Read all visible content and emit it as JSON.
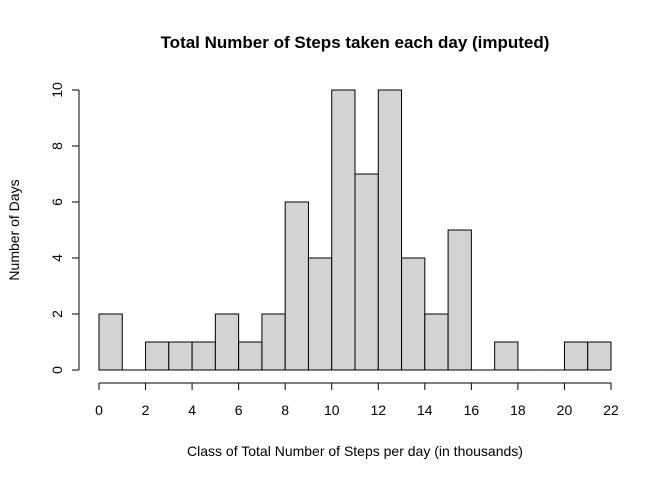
{
  "chart_data": {
    "type": "bar",
    "subtype": "histogram",
    "title": "Total Number of Steps taken each day (imputed)",
    "xlabel": "Class of Total Number of Steps per day (in thousands)",
    "ylabel": "Number of Days",
    "bin_edges": [
      0,
      1,
      2,
      3,
      4,
      5,
      6,
      7,
      8,
      9,
      10,
      11,
      12,
      13,
      14,
      15,
      16,
      17,
      18,
      19,
      20,
      21,
      22
    ],
    "values": [
      2,
      0,
      1,
      1,
      1,
      2,
      1,
      2,
      6,
      4,
      10,
      7,
      10,
      4,
      2,
      5,
      0,
      1,
      0,
      0,
      1,
      1
    ],
    "xlim": [
      0,
      22
    ],
    "ylim": [
      0,
      10
    ],
    "x_ticks": [
      "0",
      "2",
      "4",
      "6",
      "8",
      "10",
      "12",
      "14",
      "16",
      "18",
      "20",
      "22"
    ],
    "y_ticks": [
      "0",
      "2",
      "4",
      "6",
      "8",
      "10"
    ],
    "grid": false,
    "bar_fill": "#d3d3d3",
    "bar_stroke": "#000000"
  }
}
